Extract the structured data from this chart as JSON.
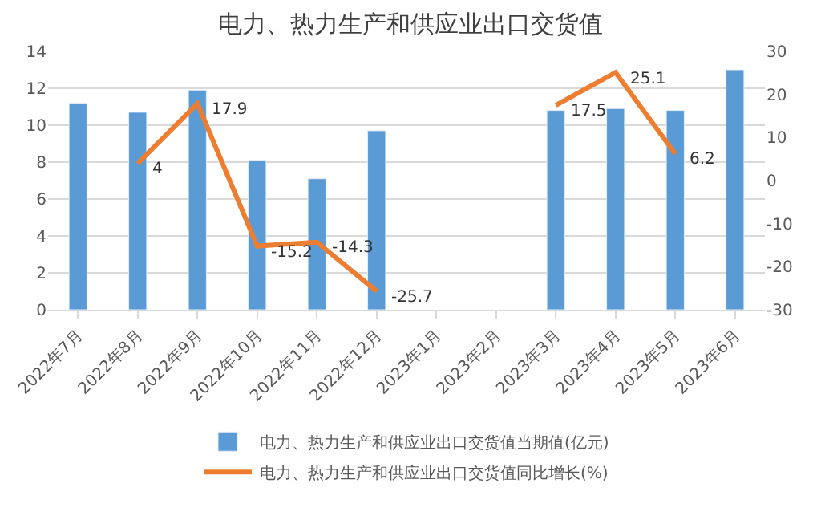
{
  "chart_data": {
    "type": "bar",
    "title": "电力、热力生产和供应业出口交货值",
    "categories": [
      "2022年7月",
      "2022年8月",
      "2022年9月",
      "2022年10月",
      "2022年11月",
      "2022年12月",
      "2023年1月",
      "2023年2月",
      "2023年3月",
      "2023年4月",
      "2023年5月",
      "2023年6月"
    ],
    "series": [
      {
        "name": "电力、热力生产和供应业出口交货值当期值(亿元)",
        "color": "#5b9bd5",
        "values": [
          11.2,
          10.7,
          11.9,
          8.1,
          7.1,
          9.7,
          null,
          null,
          10.8,
          10.9,
          10.8,
          13.0
        ]
      },
      {
        "name": "电力、热力生产和供应业出口交货值同比增长(%)",
        "type": "line",
        "axis": "y2",
        "color": "#ed7d31",
        "data_labels": true,
        "values": [
          null,
          4,
          17.9,
          -15.2,
          -14.3,
          -25.7,
          null,
          null,
          17.5,
          25.1,
          6.2,
          null
        ]
      }
    ],
    "ylim": [
      0,
      14
    ],
    "yticks": [
      0,
      2,
      4,
      6,
      8,
      10,
      12,
      14
    ],
    "y2lim": [
      -30,
      30
    ],
    "y2ticks": [
      -30,
      -20,
      -10,
      0,
      10,
      20,
      30
    ],
    "grid": "y",
    "legend": "bottom"
  }
}
